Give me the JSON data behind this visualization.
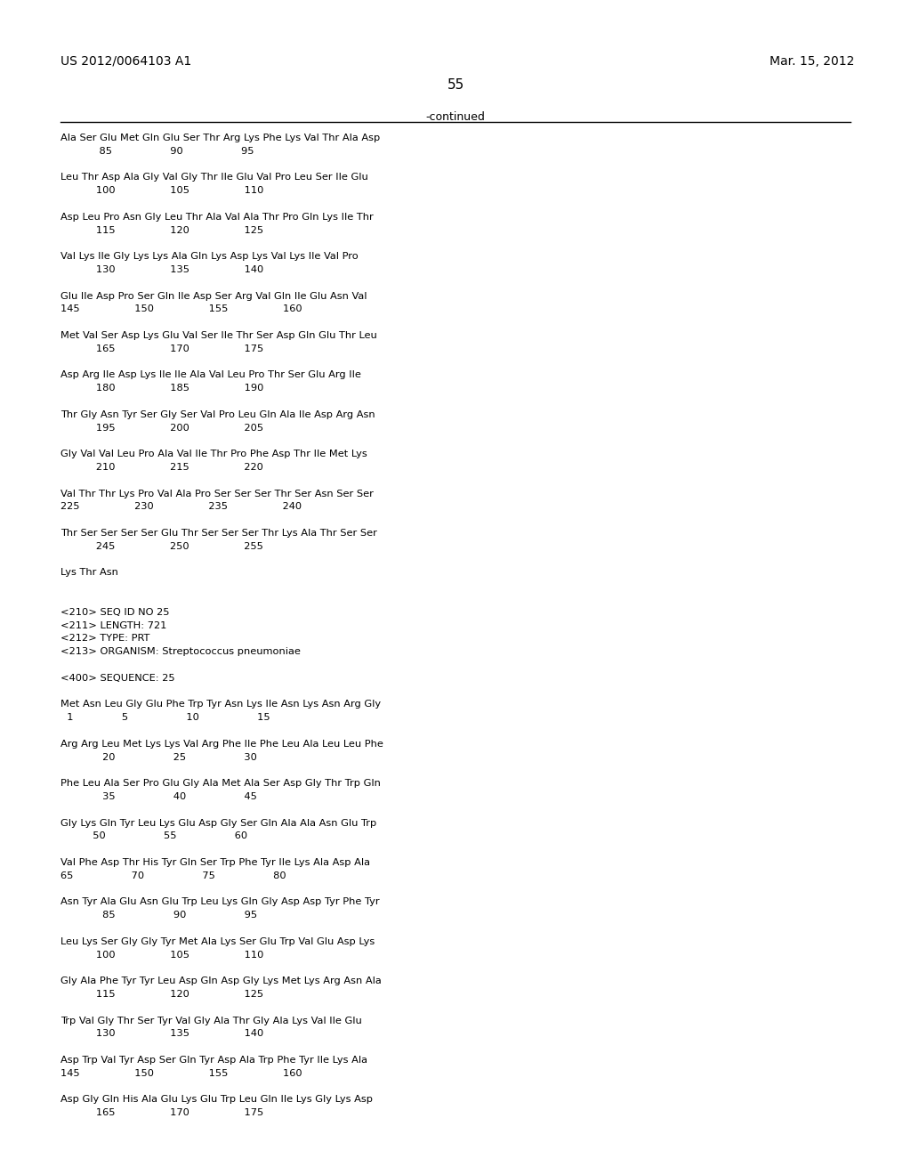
{
  "header_left": "US 2012/0064103 A1",
  "header_right": "Mar. 15, 2012",
  "page_number": "55",
  "continued_label": "-continued",
  "background_color": "#ffffff",
  "text_color": "#000000",
  "content_lines": [
    "Ala Ser Glu Met Gln Glu Ser Thr Arg Lys Phe Lys Val Thr Ala Asp",
    "            85                  90                  95",
    "",
    "Leu Thr Asp Ala Gly Val Gly Thr Ile Glu Val Pro Leu Ser Ile Glu",
    "           100                 105                 110",
    "",
    "Asp Leu Pro Asn Gly Leu Thr Ala Val Ala Thr Pro Gln Lys Ile Thr",
    "           115                 120                 125",
    "",
    "Val Lys Ile Gly Lys Lys Ala Gln Lys Asp Lys Val Lys Ile Val Pro",
    "           130                 135                 140",
    "",
    "Glu Ile Asp Pro Ser Gln Ile Asp Ser Arg Val Gln Ile Glu Asn Val",
    "145                 150                 155                 160",
    "",
    "Met Val Ser Asp Lys Glu Val Ser Ile Thr Ser Asp Gln Glu Thr Leu",
    "           165                 170                 175",
    "",
    "Asp Arg Ile Asp Lys Ile Ile Ala Val Leu Pro Thr Ser Glu Arg Ile",
    "           180                 185                 190",
    "",
    "Thr Gly Asn Tyr Ser Gly Ser Val Pro Leu Gln Ala Ile Asp Arg Asn",
    "           195                 200                 205",
    "",
    "Gly Val Val Leu Pro Ala Val Ile Thr Pro Phe Asp Thr Ile Met Lys",
    "           210                 215                 220",
    "",
    "Val Thr Thr Lys Pro Val Ala Pro Ser Ser Ser Thr Ser Asn Ser Ser",
    "225                 230                 235                 240",
    "",
    "Thr Ser Ser Ser Ser Glu Thr Ser Ser Ser Thr Lys Ala Thr Ser Ser",
    "           245                 250                 255",
    "",
    "Lys Thr Asn",
    "",
    "",
    "<210> SEQ ID NO 25",
    "<211> LENGTH: 721",
    "<212> TYPE: PRT",
    "<213> ORGANISM: Streptococcus pneumoniae",
    "",
    "<400> SEQUENCE: 25",
    "",
    "Met Asn Leu Gly Glu Phe Trp Tyr Asn Lys Ile Asn Lys Asn Arg Gly",
    "  1               5                  10                  15",
    "",
    "Arg Arg Leu Met Lys Lys Val Arg Phe Ile Phe Leu Ala Leu Leu Phe",
    "             20                  25                  30",
    "",
    "Phe Leu Ala Ser Pro Glu Gly Ala Met Ala Ser Asp Gly Thr Trp Gln",
    "             35                  40                  45",
    "",
    "Gly Lys Gln Tyr Leu Lys Glu Asp Gly Ser Gln Ala Ala Asn Glu Trp",
    "          50                  55                  60",
    "",
    "Val Phe Asp Thr His Tyr Gln Ser Trp Phe Tyr Ile Lys Ala Asp Ala",
    "65                  70                  75                  80",
    "",
    "Asn Tyr Ala Glu Asn Glu Trp Leu Lys Gln Gly Asp Asp Tyr Phe Tyr",
    "             85                  90                  95",
    "",
    "Leu Lys Ser Gly Gly Tyr Met Ala Lys Ser Glu Trp Val Glu Asp Lys",
    "           100                 105                 110",
    "",
    "Gly Ala Phe Tyr Tyr Leu Asp Gln Asp Gly Lys Met Lys Arg Asn Ala",
    "           115                 120                 125",
    "",
    "Trp Val Gly Thr Ser Tyr Val Gly Ala Thr Gly Ala Lys Val Ile Glu",
    "           130                 135                 140",
    "",
    "Asp Trp Val Tyr Asp Ser Gln Tyr Asp Ala Trp Phe Tyr Ile Lys Ala",
    "145                 150                 155                 160",
    "",
    "Asp Gly Gln His Ala Glu Lys Glu Trp Leu Gln Ile Lys Gly Lys Asp",
    "           165                 170                 175"
  ]
}
